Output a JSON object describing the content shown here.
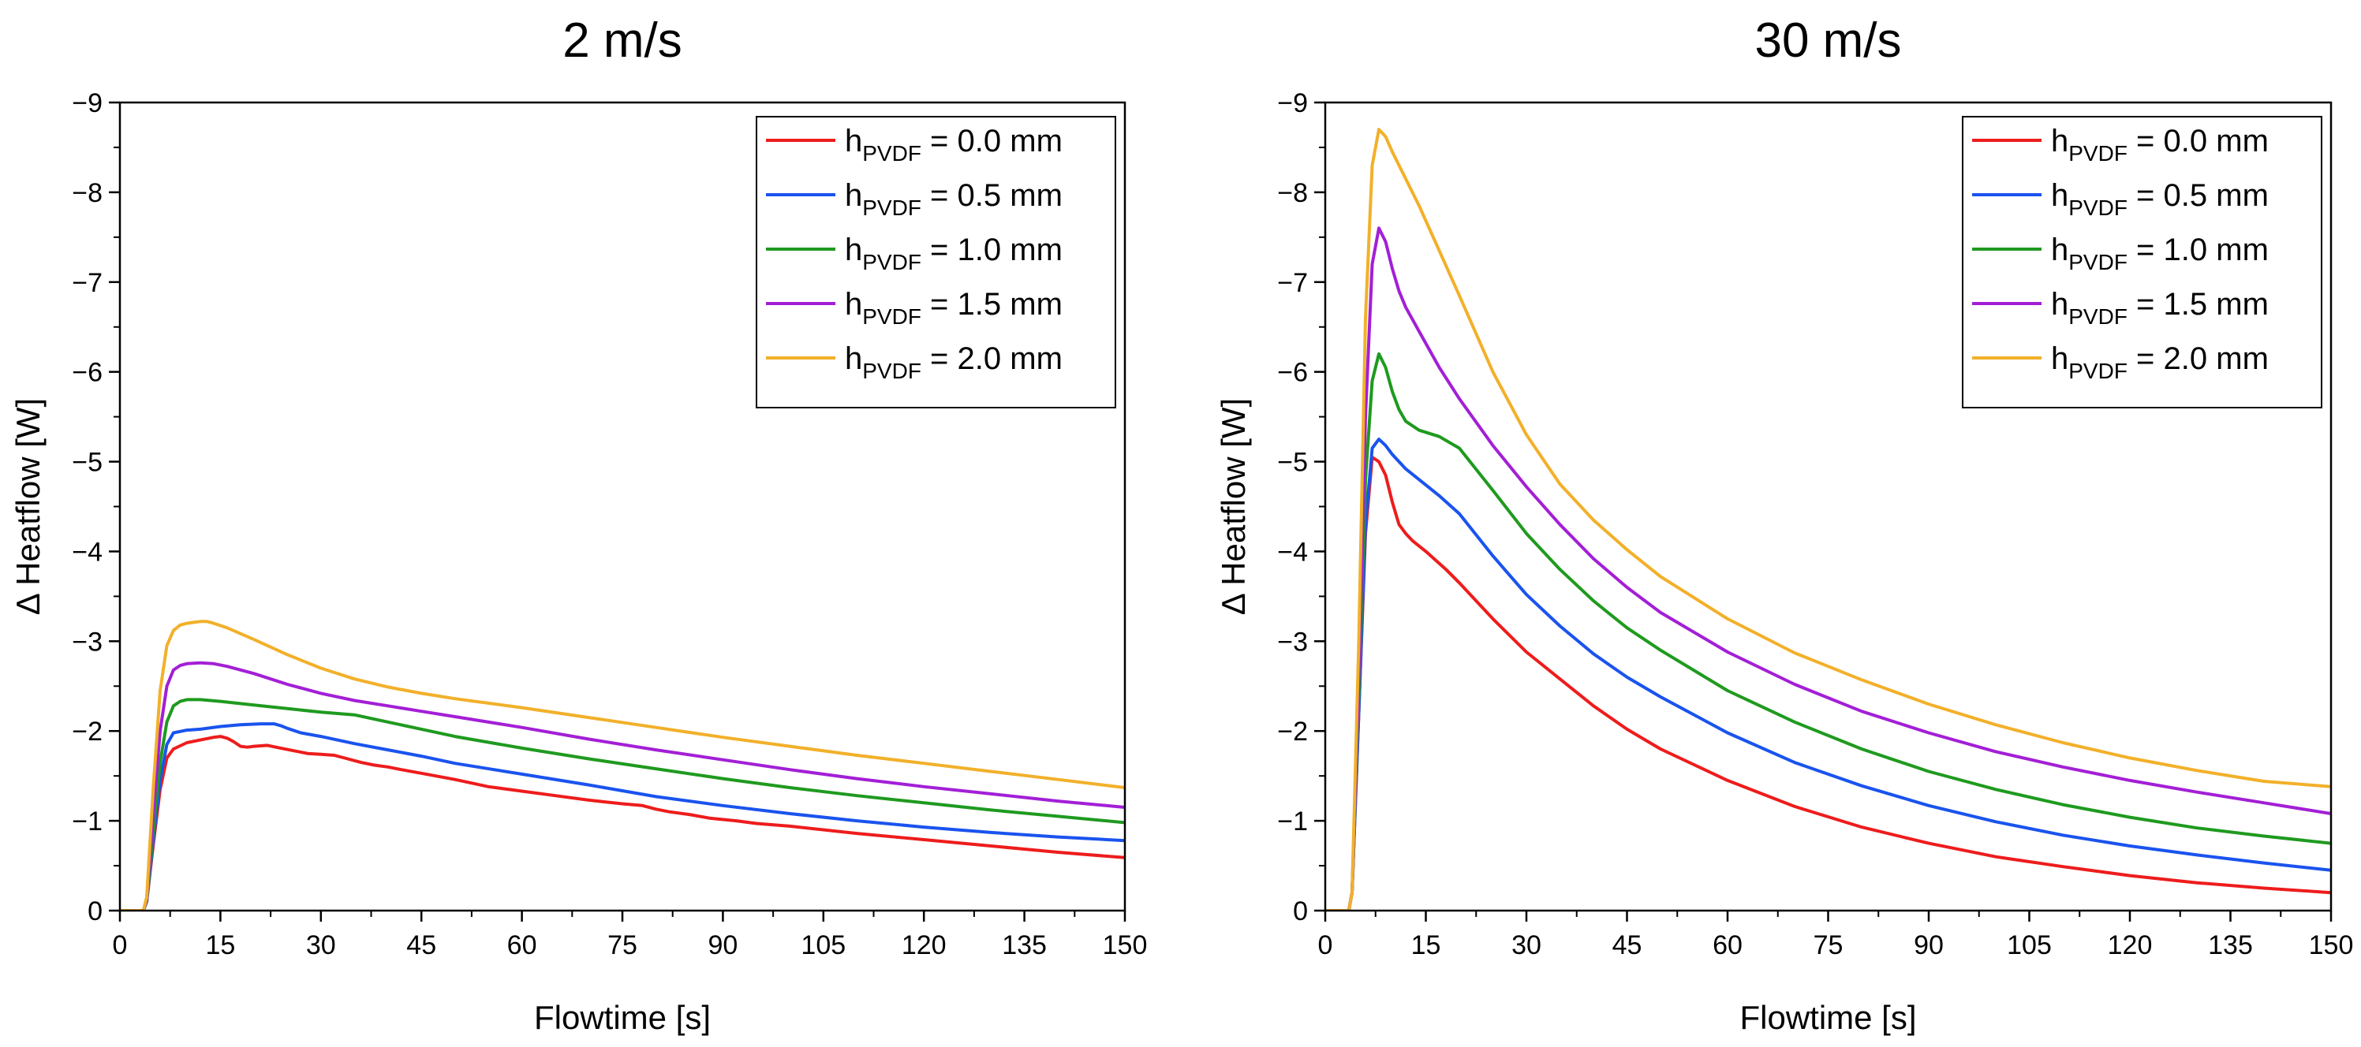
{
  "chart_data": [
    {
      "type": "line",
      "title": "2 m/s",
      "xlabel": "Flowtime [s]",
      "ylabel": "Δ Heatflow [W]",
      "xlim": [
        0,
        150
      ],
      "ylim": [
        0,
        -9
      ],
      "y_axis_inverted": true,
      "grid": false,
      "legend_position": "top-right",
      "xticks": [
        0,
        15,
        30,
        45,
        60,
        75,
        90,
        105,
        120,
        135,
        150
      ],
      "yticks": [
        0,
        -1,
        -2,
        -3,
        -4,
        -5,
        -6,
        -7,
        -8,
        -9
      ],
      "xtick_labels": [
        "0",
        "15",
        "30",
        "45",
        "60",
        "75",
        "90",
        "105",
        "120",
        "135",
        "150"
      ],
      "ytick_labels": [
        "0",
        "−1",
        "−2",
        "−3",
        "−4",
        "−5",
        "−6",
        "−7",
        "−8",
        "−9"
      ],
      "series": [
        {
          "name": "h_PVDF = 0.0 mm",
          "legend_main": "h",
          "legend_sub": "PVDF",
          "legend_rest": " = 0.0 mm",
          "color": "#ee1c1c",
          "x": [
            0,
            2.5,
            3.5,
            4,
            5,
            6,
            7,
            8,
            10,
            12,
            14,
            15,
            16,
            17,
            18,
            19,
            20,
            22,
            24,
            26,
            28,
            30,
            32,
            34,
            36,
            38,
            40,
            42,
            45,
            50,
            55,
            60,
            65,
            70,
            75,
            78,
            80,
            82,
            85,
            88,
            92,
            95,
            100,
            110,
            120,
            130,
            140,
            150
          ],
          "y": [
            0,
            0,
            0,
            -0.1,
            -0.75,
            -1.35,
            -1.7,
            -1.8,
            -1.87,
            -1.9,
            -1.93,
            -1.94,
            -1.92,
            -1.88,
            -1.83,
            -1.82,
            -1.83,
            -1.84,
            -1.81,
            -1.78,
            -1.75,
            -1.74,
            -1.73,
            -1.69,
            -1.65,
            -1.62,
            -1.6,
            -1.57,
            -1.53,
            -1.46,
            -1.38,
            -1.33,
            -1.28,
            -1.23,
            -1.19,
            -1.17,
            -1.13,
            -1.1,
            -1.07,
            -1.03,
            -1.0,
            -0.97,
            -0.94,
            -0.86,
            -0.79,
            -0.72,
            -0.65,
            -0.59
          ]
        },
        {
          "name": "h_PVDF = 0.5 mm",
          "legend_main": "h",
          "legend_sub": "PVDF",
          "legend_rest": " = 0.5 mm",
          "color": "#1a53ee",
          "x": [
            0,
            2.5,
            3.5,
            4,
            5,
            6,
            7,
            8,
            10,
            12,
            15,
            18,
            21,
            23,
            24,
            25,
            27,
            30,
            35,
            40,
            45,
            50,
            60,
            70,
            80,
            90,
            100,
            110,
            120,
            130,
            140,
            150
          ],
          "y": [
            0,
            0,
            0,
            -0.1,
            -0.8,
            -1.45,
            -1.85,
            -1.98,
            -2.01,
            -2.02,
            -2.05,
            -2.07,
            -2.08,
            -2.08,
            -2.06,
            -2.03,
            -1.98,
            -1.94,
            -1.86,
            -1.79,
            -1.72,
            -1.64,
            -1.52,
            -1.4,
            -1.27,
            -1.17,
            -1.08,
            -1.0,
            -0.93,
            -0.87,
            -0.82,
            -0.78
          ]
        },
        {
          "name": "h_PVDF = 1.0 mm",
          "legend_main": "h",
          "legend_sub": "PVDF",
          "legend_rest": " = 1.0 mm",
          "color": "#1f9a1f",
          "x": [
            0,
            2.5,
            3.5,
            4,
            5,
            6,
            7,
            8,
            9,
            10,
            12,
            15,
            20,
            25,
            30,
            35,
            40,
            45,
            50,
            60,
            70,
            80,
            90,
            100,
            110,
            120,
            130,
            140,
            150
          ],
          "y": [
            0,
            0,
            0,
            -0.1,
            -0.9,
            -1.65,
            -2.1,
            -2.28,
            -2.33,
            -2.35,
            -2.35,
            -2.33,
            -2.29,
            -2.25,
            -2.21,
            -2.18,
            -2.1,
            -2.02,
            -1.94,
            -1.81,
            -1.69,
            -1.58,
            -1.47,
            -1.37,
            -1.28,
            -1.2,
            -1.12,
            -1.05,
            -0.98
          ]
        },
        {
          "name": "h_PVDF = 1.5 mm",
          "legend_main": "h",
          "legend_sub": "PVDF",
          "legend_rest": " = 1.5 mm",
          "color": "#a31fd6",
          "x": [
            0,
            2.5,
            3.5,
            4,
            5,
            6,
            7,
            8,
            9,
            10,
            12,
            14,
            16,
            20,
            25,
            30,
            35,
            40,
            45,
            50,
            60,
            70,
            80,
            90,
            100,
            110,
            120,
            130,
            140,
            150
          ],
          "y": [
            0,
            0,
            0,
            -0.12,
            -1.1,
            -2.0,
            -2.5,
            -2.68,
            -2.73,
            -2.75,
            -2.76,
            -2.75,
            -2.72,
            -2.64,
            -2.52,
            -2.42,
            -2.34,
            -2.28,
            -2.22,
            -2.16,
            -2.04,
            -1.91,
            -1.79,
            -1.68,
            -1.57,
            -1.47,
            -1.38,
            -1.3,
            -1.22,
            -1.15
          ]
        },
        {
          "name": "h_PVDF = 2.0 mm",
          "legend_main": "h",
          "legend_sub": "PVDF",
          "legend_rest": " = 2.0 mm",
          "color": "#f2b02a",
          "x": [
            0,
            2.5,
            3.5,
            4,
            5,
            6,
            7,
            8,
            9,
            10,
            11,
            12,
            13,
            14,
            16,
            20,
            25,
            30,
            35,
            40,
            45,
            50,
            60,
            70,
            80,
            90,
            100,
            110,
            120,
            130,
            140,
            150
          ],
          "y": [
            0,
            0,
            0,
            -0.15,
            -1.4,
            -2.45,
            -2.95,
            -3.12,
            -3.18,
            -3.2,
            -3.21,
            -3.22,
            -3.22,
            -3.2,
            -3.15,
            -3.02,
            -2.85,
            -2.7,
            -2.58,
            -2.49,
            -2.42,
            -2.36,
            -2.26,
            -2.15,
            -2.04,
            -1.93,
            -1.83,
            -1.73,
            -1.64,
            -1.55,
            -1.46,
            -1.37
          ]
        }
      ]
    },
    {
      "type": "line",
      "title": "30 m/s",
      "xlabel": "Flowtime [s]",
      "ylabel": "Δ Heatflow [W]",
      "xlim": [
        0,
        150
      ],
      "ylim": [
        0,
        -9
      ],
      "y_axis_inverted": true,
      "grid": false,
      "legend_position": "top-right",
      "xticks": [
        0,
        15,
        30,
        45,
        60,
        75,
        90,
        105,
        120,
        135,
        150
      ],
      "yticks": [
        0,
        -1,
        -2,
        -3,
        -4,
        -5,
        -6,
        -7,
        -8,
        -9
      ],
      "xtick_labels": [
        "0",
        "15",
        "30",
        "45",
        "60",
        "75",
        "90",
        "105",
        "120",
        "135",
        "150"
      ],
      "ytick_labels": [
        "0",
        "−1",
        "−2",
        "−3",
        "−4",
        "−5",
        "−6",
        "−7",
        "−8",
        "−9"
      ],
      "series": [
        {
          "name": "h_PVDF = 0.0 mm",
          "legend_main": "h",
          "legend_sub": "PVDF",
          "legend_rest": " = 0.0 mm",
          "color": "#ee1c1c",
          "x": [
            0,
            2.5,
            3.5,
            4,
            5,
            6,
            7,
            8,
            9,
            10,
            11,
            12,
            13,
            15,
            18,
            20,
            25,
            30,
            35,
            40,
            45,
            50,
            60,
            70,
            80,
            90,
            100,
            110,
            120,
            130,
            140,
            150
          ],
          "y": [
            0,
            0,
            0,
            -0.2,
            -2.2,
            -4.2,
            -5.05,
            -5.0,
            -4.85,
            -4.55,
            -4.3,
            -4.2,
            -4.12,
            -4.0,
            -3.8,
            -3.65,
            -3.25,
            -2.88,
            -2.58,
            -2.28,
            -2.02,
            -1.8,
            -1.45,
            -1.16,
            -0.93,
            -0.75,
            -0.6,
            -0.49,
            -0.39,
            -0.31,
            -0.25,
            -0.2
          ]
        },
        {
          "name": "h_PVDF = 0.5 mm",
          "legend_main": "h",
          "legend_sub": "PVDF",
          "legend_rest": " = 0.5 mm",
          "color": "#1a53ee",
          "x": [
            0,
            2.5,
            3.5,
            4,
            5,
            6,
            7,
            8,
            9,
            10,
            11,
            12,
            14,
            17,
            20,
            25,
            30,
            35,
            40,
            45,
            50,
            60,
            70,
            80,
            90,
            100,
            110,
            120,
            130,
            140,
            150
          ],
          "y": [
            0,
            0,
            0,
            -0.2,
            -2.2,
            -4.3,
            -5.15,
            -5.25,
            -5.18,
            -5.08,
            -5.0,
            -4.92,
            -4.8,
            -4.62,
            -4.42,
            -3.95,
            -3.52,
            -3.17,
            -2.86,
            -2.6,
            -2.38,
            -1.98,
            -1.65,
            -1.39,
            -1.17,
            -0.99,
            -0.84,
            -0.72,
            -0.62,
            -0.53,
            -0.45
          ]
        },
        {
          "name": "h_PVDF = 1.0 mm",
          "legend_main": "h",
          "legend_sub": "PVDF",
          "legend_rest": " = 1.0 mm",
          "color": "#1f9a1f",
          "x": [
            0,
            2.5,
            3.5,
            4,
            5,
            6,
            7,
            8,
            9,
            10,
            11,
            12,
            14,
            17,
            20,
            25,
            30,
            35,
            40,
            45,
            50,
            60,
            70,
            80,
            90,
            100,
            110,
            120,
            130,
            140,
            150
          ],
          "y": [
            0,
            0,
            0,
            -0.2,
            -2.4,
            -4.8,
            -5.9,
            -6.2,
            -6.05,
            -5.78,
            -5.58,
            -5.45,
            -5.35,
            -5.28,
            -5.15,
            -4.68,
            -4.2,
            -3.8,
            -3.45,
            -3.15,
            -2.9,
            -2.45,
            -2.1,
            -1.8,
            -1.55,
            -1.35,
            -1.18,
            -1.04,
            -0.92,
            -0.83,
            -0.75
          ]
        },
        {
          "name": "h_PVDF = 1.5 mm",
          "legend_main": "h",
          "legend_sub": "PVDF",
          "legend_rest": " = 1.5 mm",
          "color": "#a31fd6",
          "x": [
            0,
            2.5,
            3.5,
            4,
            5,
            6,
            7,
            8,
            9,
            10,
            11,
            12,
            14,
            17,
            20,
            25,
            30,
            35,
            40,
            45,
            50,
            60,
            70,
            80,
            90,
            100,
            110,
            120,
            130,
            140,
            150
          ],
          "y": [
            0,
            0,
            0,
            -0.2,
            -2.6,
            -5.5,
            -7.2,
            -7.6,
            -7.45,
            -7.15,
            -6.9,
            -6.72,
            -6.45,
            -6.05,
            -5.7,
            -5.18,
            -4.72,
            -4.3,
            -3.92,
            -3.6,
            -3.32,
            -2.88,
            -2.52,
            -2.22,
            -1.98,
            -1.77,
            -1.6,
            -1.45,
            -1.32,
            -1.2,
            -1.08
          ]
        },
        {
          "name": "h_PVDF = 2.0 mm",
          "legend_main": "h",
          "legend_sub": "PVDF",
          "legend_rest": " = 2.0 mm",
          "color": "#f2b02a",
          "x": [
            0,
            2.5,
            3.5,
            4,
            5,
            6,
            7,
            8,
            9,
            10,
            11,
            12,
            14,
            17,
            20,
            25,
            30,
            35,
            40,
            45,
            50,
            60,
            70,
            80,
            90,
            100,
            110,
            120,
            130,
            140,
            150
          ],
          "y": [
            0,
            0,
            0,
            -0.2,
            -3.0,
            -6.6,
            -8.3,
            -8.7,
            -8.62,
            -8.45,
            -8.3,
            -8.15,
            -7.85,
            -7.35,
            -6.85,
            -6.0,
            -5.3,
            -4.75,
            -4.35,
            -4.02,
            -3.72,
            -3.25,
            -2.87,
            -2.57,
            -2.3,
            -2.07,
            -1.87,
            -1.7,
            -1.56,
            -1.44,
            -1.38
          ]
        }
      ]
    }
  ]
}
